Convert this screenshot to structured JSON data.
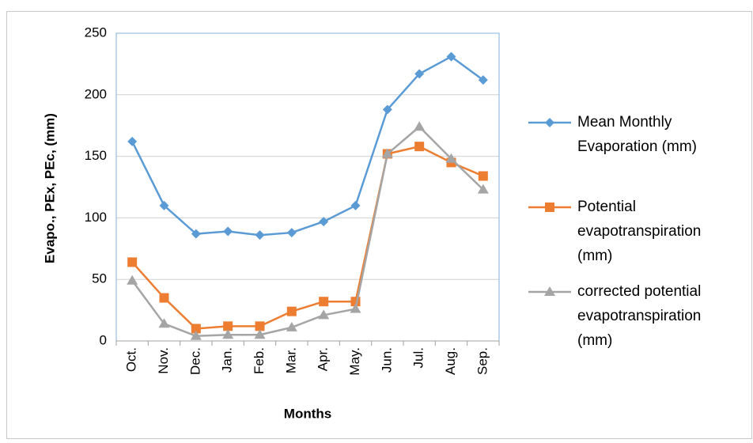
{
  "chart_data": {
    "type": "line",
    "xlabel": "Months",
    "ylabel": "Evapo., PEx, PEc, (mm)",
    "categories": [
      "Oct.",
      "Nov.",
      "Dec.",
      "Jan.",
      "Feb.",
      "Mar.",
      "Apr.",
      "May.",
      "Jun.",
      "Jul.",
      "Aug.",
      "Sep."
    ],
    "series": [
      {
        "name": "Mean Monthly Evaporation (mm)",
        "color": "#5b9bd5",
        "marker": "diamond",
        "values": [
          162,
          110,
          87,
          89,
          86,
          88,
          97,
          110,
          188,
          217,
          231,
          212
        ]
      },
      {
        "name": "Potential evapotranspiration (mm)",
        "color": "#ed7d31",
        "marker": "square",
        "values": [
          64,
          35,
          10,
          12,
          12,
          24,
          32,
          32,
          152,
          158,
          145,
          134
        ]
      },
      {
        "name": "corrected potential evapotranspiration (mm)",
        "color": "#a5a5a5",
        "marker": "triangle",
        "values": [
          49,
          14,
          4,
          5,
          5,
          11,
          21,
          26,
          152,
          174,
          148,
          123
        ]
      }
    ],
    "ylim": [
      0,
      250
    ],
    "yticks": [
      0,
      50,
      100,
      150,
      200,
      250
    ],
    "grid": true,
    "legend": "right"
  }
}
